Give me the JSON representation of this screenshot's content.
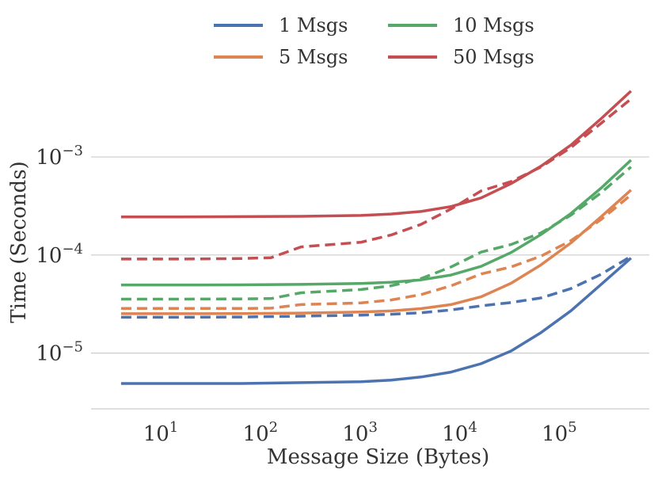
{
  "chart_data": {
    "type": "line",
    "title": "",
    "xlabel": "Message Size (Bytes)",
    "ylabel": "Time (Seconds)",
    "xscale": "log",
    "yscale": "log",
    "xlim": [
      2,
      800000
    ],
    "ylim": [
      2.7e-06,
      0.0068
    ],
    "grid": "horizontal",
    "legend_position": "top-center",
    "x_ticks": [
      {
        "value": 10,
        "base": "10",
        "exp": "1"
      },
      {
        "value": 100,
        "base": "10",
        "exp": "2"
      },
      {
        "value": 1000,
        "base": "10",
        "exp": "3"
      },
      {
        "value": 10000,
        "base": "10",
        "exp": "4"
      },
      {
        "value": 100000,
        "base": "10",
        "exp": "5"
      }
    ],
    "y_ticks": [
      {
        "value": 1e-05,
        "base": "10",
        "exp": "−5"
      },
      {
        "value": 0.0001,
        "base": "10",
        "exp": "−4"
      },
      {
        "value": 0.001,
        "base": "10",
        "exp": "−3"
      }
    ],
    "legend": [
      {
        "label": "1 Msgs",
        "color": "#4c72b0"
      },
      {
        "label": "5 Msgs",
        "color": "#dd8452"
      },
      {
        "label": "10 Msgs",
        "color": "#55a868"
      },
      {
        "label": "50 Msgs",
        "color": "#c44e52"
      }
    ],
    "series": [
      {
        "name": "1 Msgs",
        "style": "solid",
        "color": "#4c72b0",
        "x": [
          4,
          16,
          64,
          256,
          1024,
          2048,
          4096,
          8192,
          16384,
          32768,
          65536,
          131072,
          262144,
          524288
        ],
        "y": [
          4.9e-06,
          4.9e-06,
          4.9e-06,
          5e-06,
          5.1e-06,
          5.3e-06,
          5.7e-06,
          6.4e-06,
          7.8e-06,
          1.05e-05,
          1.62e-05,
          2.7e-05,
          5e-05,
          9.3e-05
        ]
      },
      {
        "name": "1 Msgs",
        "style": "dashed",
        "color": "#4c72b0",
        "x": [
          4,
          16,
          64,
          256,
          1024,
          2048,
          4096,
          8192,
          16384,
          32768,
          65536,
          131072,
          262144,
          524288
        ],
        "y": [
          2.32e-05,
          2.32e-05,
          2.33e-05,
          2.38e-05,
          2.44e-05,
          2.49e-05,
          2.58e-05,
          2.75e-05,
          3.03e-05,
          3.28e-05,
          3.65e-05,
          4.55e-05,
          6.35e-05,
          9.7e-05
        ]
      },
      {
        "name": "5 Msgs",
        "style": "solid",
        "color": "#dd8452",
        "x": [
          4,
          16,
          64,
          256,
          1024,
          2048,
          4096,
          8192,
          16384,
          32768,
          65536,
          131072,
          262144,
          524288
        ],
        "y": [
          2.52e-05,
          2.52e-05,
          2.53e-05,
          2.56e-05,
          2.62e-05,
          2.69e-05,
          2.84e-05,
          3.12e-05,
          3.75e-05,
          5.15e-05,
          7.95e-05,
          0.000133,
          0.000245,
          0.00046
        ]
      },
      {
        "name": "5 Msgs",
        "style": "dashed",
        "color": "#dd8452",
        "x": [
          4,
          16,
          64,
          128,
          256,
          1024,
          2048,
          4096,
          8192,
          16384,
          32768,
          65536,
          131072,
          262144,
          524288
        ],
        "y": [
          2.85e-05,
          2.85e-05,
          2.85e-05,
          2.87e-05,
          3.12e-05,
          3.25e-05,
          3.48e-05,
          3.95e-05,
          4.85e-05,
          6.4e-05,
          7.55e-05,
          9.75e-05,
          0.00014,
          0.00023,
          0.00041
        ]
      },
      {
        "name": "10 Msgs",
        "style": "solid",
        "color": "#55a868",
        "x": [
          4,
          16,
          64,
          256,
          1024,
          2048,
          4096,
          8192,
          16384,
          32768,
          65536,
          131072,
          262144,
          524288
        ],
        "y": [
          4.95e-05,
          4.95e-05,
          4.96e-05,
          5.02e-05,
          5.13e-05,
          5.27e-05,
          5.58e-05,
          6.25e-05,
          7.65e-05,
          0.000106,
          0.000162,
          0.000265,
          0.00048,
          0.00093
        ]
      },
      {
        "name": "10 Msgs",
        "style": "dashed",
        "color": "#55a868",
        "x": [
          4,
          16,
          64,
          128,
          256,
          1024,
          2048,
          4096,
          8192,
          16384,
          32768,
          65536,
          131072,
          262144,
          524288
        ],
        "y": [
          3.55e-05,
          3.55e-05,
          3.57e-05,
          3.6e-05,
          4.12e-05,
          4.45e-05,
          4.85e-05,
          5.75e-05,
          7.55e-05,
          0.000107,
          0.000128,
          0.000168,
          0.000255,
          0.00043,
          0.00079
        ]
      },
      {
        "name": "50 Msgs",
        "style": "solid",
        "color": "#c44e52",
        "x": [
          4,
          16,
          64,
          256,
          1024,
          2048,
          4096,
          8192,
          16384,
          32768,
          65536,
          131072,
          262144,
          524288
        ],
        "y": [
          0.000245,
          0.000245,
          0.000246,
          0.000248,
          0.000253,
          0.000262,
          0.000278,
          0.000312,
          0.000382,
          0.000535,
          0.000805,
          0.00132,
          0.00245,
          0.0047
        ]
      },
      {
        "name": "50 Msgs",
        "style": "dashed",
        "color": "#c44e52",
        "x": [
          4,
          16,
          64,
          128,
          256,
          1024,
          2048,
          4096,
          8192,
          16384,
          32768,
          65536,
          131072,
          262144,
          524288
        ],
        "y": [
          9.1e-05,
          9.1e-05,
          9.2e-05,
          9.4e-05,
          0.000121,
          0.000135,
          0.00016,
          0.000205,
          0.000295,
          0.00045,
          0.00056,
          0.00079,
          0.00125,
          0.0022,
          0.0039
        ]
      }
    ]
  }
}
